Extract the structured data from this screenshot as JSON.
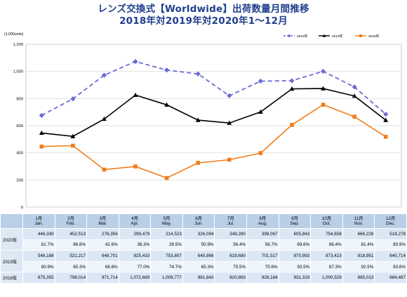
{
  "title_line1": "レンズ交換式【Worldwide】出荷数量月間推移",
  "title_line2": "2018年対2019年対2020年1～12月",
  "chart_data": {
    "type": "line",
    "unit_label": "(1,000units)",
    "ylim": [
      0,
      1200
    ],
    "yticks": [
      "0",
      "200",
      "400",
      "600",
      "800",
      "1,000",
      "1,200"
    ],
    "grid": true,
    "legend_placement": "top-right",
    "categories_jp": [
      "1月",
      "2月",
      "3月",
      "4月",
      "5月",
      "6月",
      "7月",
      "8月",
      "9月",
      "10月",
      "11月",
      "12月"
    ],
    "categories_en": [
      "Jan.",
      "Feb.",
      "Mar.",
      "Apr.",
      "May.",
      "Jun.",
      "Jul.",
      "Aug.",
      "Sep.",
      "Oct.",
      "Nov.",
      "Dec."
    ],
    "series": [
      {
        "name": "2018年",
        "color": "#6a6ad8",
        "dash": true,
        "marker": "diamond",
        "values": [
          675.355,
          798.014,
          971.714,
          1072.669,
          1009.777,
          981.843,
          820.893,
          928.184,
          931.319,
          1000.529,
          885.013,
          684.487
        ]
      },
      {
        "name": "2019年",
        "color": "#000000",
        "dash": false,
        "marker": "triangle",
        "values": [
          546.188,
          521.217,
          648.701,
          825.433,
          753.807,
          640.866,
          619.68,
          701.517,
          870.993,
          873.423,
          818.951,
          640.714
        ]
      },
      {
        "name": "2020年",
        "color": "#f07d1a",
        "dash": false,
        "marker": "square",
        "values": [
          446.33,
          452.513,
          276.356,
          299.479,
          214.523,
          326.094,
          349.28,
          398.067,
          605.843,
          754.658,
          666.228,
          518.278
        ]
      }
    ]
  },
  "table": {
    "rows": [
      {
        "label": "2020年",
        "values": [
          "446,330",
          "452,513",
          "276,356",
          "299,479",
          "214,523",
          "326,094",
          "349,280",
          "398,067",
          "605,843",
          "754,658",
          "666,228",
          "518,278"
        ],
        "pcts": [
          "81.7%",
          "86.8%",
          "42.6%",
          "36.3%",
          "28.5%",
          "50.9%",
          "56.4%",
          "56.7%",
          "69.6%",
          "86.4%",
          "81.4%",
          "80.9%"
        ]
      },
      {
        "label": "2019年",
        "values": [
          "546,188",
          "521,217",
          "648,701",
          "825,433",
          "753,807",
          "640,866",
          "619,680",
          "701,517",
          "870,993",
          "873,423",
          "818,951",
          "640,714"
        ],
        "pcts": [
          "80.9%",
          "65.3%",
          "66.8%",
          "77.0%",
          "74.7%",
          "65.3%",
          "75.5%",
          "75.6%",
          "93.5%",
          "87.3%",
          "92.5%",
          "93.6%"
        ]
      },
      {
        "label": "2018年",
        "values": [
          "675,355",
          "798,014",
          "971,714",
          "1,072,669",
          "1,009,777",
          "981,843",
          "820,893",
          "928,184",
          "931,319",
          "1,000,529",
          "885,013",
          "684,487"
        ]
      }
    ]
  }
}
